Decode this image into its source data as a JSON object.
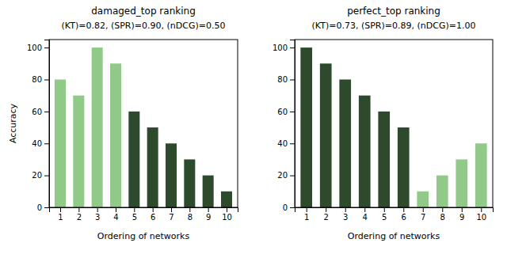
{
  "chart_data": [
    {
      "type": "bar",
      "title": "damaged_top ranking",
      "subtitle": "(KT)=0.82, (SPR)=0.90, (nDCG)=0.50",
      "xlabel": "Ordering of networks",
      "ylabel": "Accuracy",
      "x": [
        1,
        2,
        3,
        4,
        5,
        6,
        7,
        8,
        9,
        10
      ],
      "values": [
        80,
        70,
        100,
        90,
        60,
        50,
        40,
        30,
        20,
        10
      ],
      "colors": [
        "#90c988",
        "#90c988",
        "#90c988",
        "#90c988",
        "#2d4a2d",
        "#2d4a2d",
        "#2d4a2d",
        "#2d4a2d",
        "#2d4a2d",
        "#2d4a2d"
      ],
      "xlim": [
        0.4,
        10.6
      ],
      "xticks": [
        1,
        2,
        3,
        4,
        5,
        6,
        7,
        8,
        9,
        10
      ],
      "ylim": [
        0,
        105
      ],
      "yticks": [
        0,
        20,
        40,
        60,
        80,
        100
      ],
      "grid": false
    },
    {
      "type": "bar",
      "title": "perfect_top ranking",
      "subtitle": "(KT)=0.73, (SPR)=0.89, (nDCG)=1.00",
      "xlabel": "Ordering of networks",
      "x": [
        1,
        2,
        3,
        4,
        5,
        6,
        7,
        8,
        9,
        10
      ],
      "values": [
        100,
        90,
        80,
        70,
        60,
        50,
        10,
        20,
        30,
        40
      ],
      "colors": [
        "#2d4a2d",
        "#2d4a2d",
        "#2d4a2d",
        "#2d4a2d",
        "#2d4a2d",
        "#2d4a2d",
        "#90c988",
        "#90c988",
        "#90c988",
        "#90c988"
      ],
      "xlim": [
        0.4,
        10.6
      ],
      "xticks": [
        1,
        2,
        3,
        4,
        5,
        6,
        7,
        8,
        9,
        10
      ],
      "ylim": [
        0,
        105
      ],
      "yticks": [
        0,
        20,
        40,
        60,
        80,
        100
      ],
      "grid": false
    }
  ]
}
